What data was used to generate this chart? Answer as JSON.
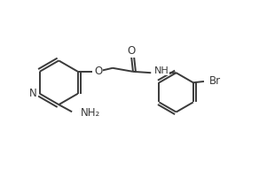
{
  "background_color": "#ffffff",
  "line_color": "#3a3a3a",
  "line_width": 1.4,
  "font_size": 8.5,
  "figsize": [
    2.92,
    1.92
  ],
  "dpi": 100,
  "xlim": [
    0,
    10.5
  ],
  "ylim": [
    0,
    7.0
  ]
}
